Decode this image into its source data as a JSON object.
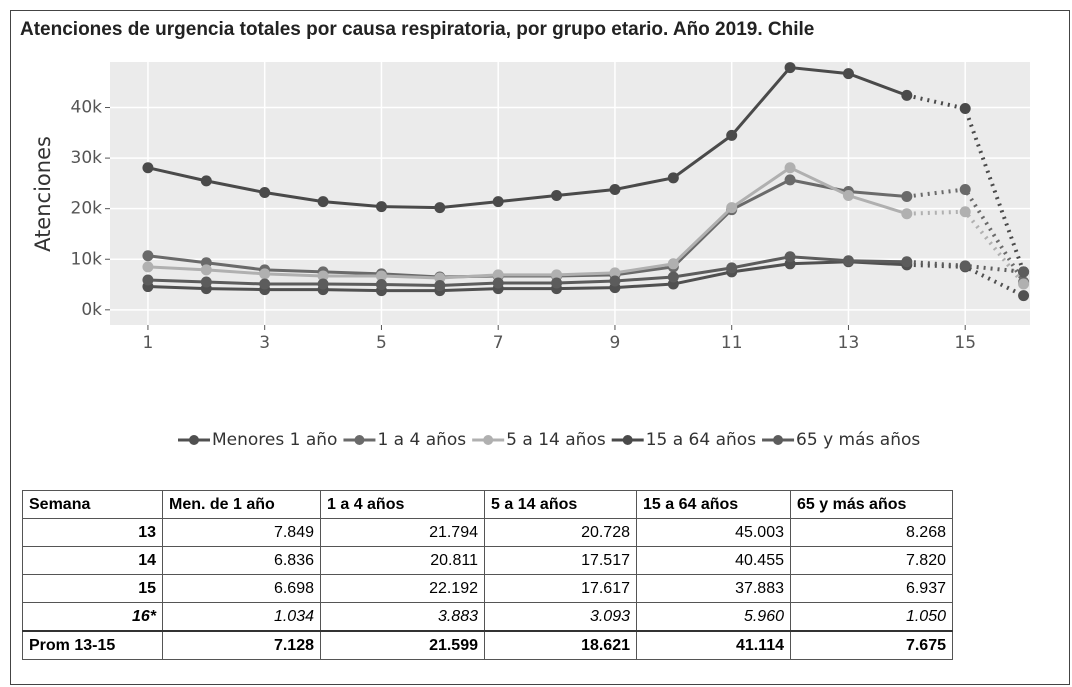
{
  "chart_data": {
    "type": "line",
    "title": "Atenciones de urgencia totales por causa respiratoria, por grupo etario. Año 2019. Chile",
    "ylabel": "Atenciones",
    "x": [
      1,
      2,
      3,
      4,
      5,
      6,
      7,
      8,
      9,
      10,
      11,
      12,
      13,
      14,
      15,
      16
    ],
    "xlim": [
      0.35,
      16.11
    ],
    "xticks": [
      1,
      3,
      5,
      7,
      9,
      11,
      13,
      15
    ],
    "ylim": [
      -3000,
      49000
    ],
    "yticks": [
      {
        "value": 0,
        "label": "0k"
      },
      {
        "value": 10000,
        "label": "10k"
      },
      {
        "value": 20000,
        "label": "20k"
      },
      {
        "value": 30000,
        "label": "30k"
      },
      {
        "value": 40000,
        "label": "40k"
      }
    ],
    "grid": true,
    "dotted_after": 14,
    "legend": "bottom",
    "series": [
      {
        "name": "Menores 1 año",
        "color": "#505050",
        "values": [
          4600,
          4200,
          4000,
          4000,
          3800,
          3800,
          4200,
          4200,
          4400,
          5100,
          7500,
          9100,
          9500,
          8900,
          8500,
          2800
        ]
      },
      {
        "name": "1 a 4 años",
        "color": "#6a6a6a",
        "values": [
          10700,
          9300,
          7900,
          7500,
          7100,
          6500,
          6700,
          6700,
          6900,
          8500,
          19800,
          25700,
          23400,
          22400,
          23800,
          5500
        ]
      },
      {
        "name": "5 a 14 años",
        "color": "#b0b0b0",
        "values": [
          8500,
          7900,
          7100,
          6700,
          6700,
          6300,
          6900,
          6900,
          7300,
          9100,
          20200,
          28100,
          22600,
          19000,
          19400,
          5100
        ]
      },
      {
        "name": "15 a 64 años",
        "color": "#4a4a4a",
        "values": [
          28100,
          25500,
          23200,
          21400,
          20400,
          20200,
          21400,
          22600,
          23800,
          26100,
          34500,
          47900,
          46700,
          42400,
          39800,
          7500
        ]
      },
      {
        "name": "65 y más años",
        "color": "#5c5c5c",
        "values": [
          5900,
          5500,
          5100,
          5100,
          5000,
          4800,
          5300,
          5300,
          5700,
          6500,
          8300,
          10500,
          9700,
          9500,
          8700,
          7500
        ]
      }
    ]
  },
  "table": {
    "header": [
      "Semana",
      "Men. de 1 año",
      "1 a 4 años",
      "5 a 14 años",
      "15 a 64 años",
      "65 y más años"
    ],
    "rows": [
      [
        "13",
        "7.849",
        "21.794",
        "20.728",
        "45.003",
        "8.268"
      ],
      [
        "14",
        "6.836",
        "20.811",
        "17.517",
        "40.455",
        "7.820"
      ],
      [
        "15",
        "6.698",
        "22.192",
        "17.617",
        "37.883",
        "6.937"
      ],
      [
        "16*",
        "1.034",
        "3.883",
        "3.093",
        "5.960",
        "1.050"
      ],
      [
        "Prom 13-15",
        "7.128",
        "21.599",
        "18.621",
        "41.114",
        "7.675"
      ]
    ]
  }
}
